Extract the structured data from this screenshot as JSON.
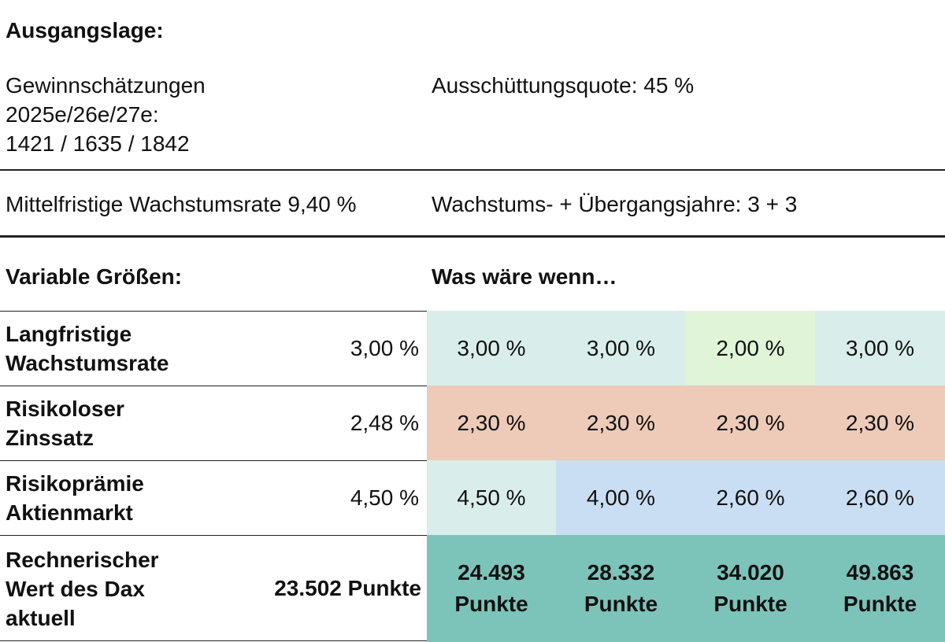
{
  "ausgangslage": {
    "title": "Ausgangslage:",
    "gewinn_label_1": "Gewinnschätzungen",
    "gewinn_label_2": "2025e/26e/27e:",
    "gewinn_values": "1421 / 1635 / 1842",
    "ausschuettung": "Ausschüttungsquote: 45 %",
    "wachstumsrate": "Mittelfristige Wachstumsrate 9,40 %",
    "jahre": "Wachstums- + Übergangsjahre: 3 + 3"
  },
  "variable": {
    "title": "Variable Größen:",
    "scenario_title": "Was wäre wenn…",
    "rows": [
      {
        "label_1": "Langfristige",
        "label_2": "Wachstumsrate",
        "base": "3,00 %",
        "scenarios": [
          "3,00 %",
          "3,00 %",
          "2,00 %",
          "3,00 %"
        ],
        "colors": [
          "#d9eeea",
          "#d9eeea",
          "#e0f4d8",
          "#d9eeea"
        ]
      },
      {
        "label_1": "Risikoloser",
        "label_2": "Zinssatz",
        "base": "2,48 %",
        "scenarios": [
          "2,30 %",
          "2,30 %",
          "2,30 %",
          "2,30 %"
        ],
        "colors": [
          "#edcbb8",
          "#edcbb8",
          "#edcbb8",
          "#edcbb8"
        ]
      },
      {
        "label_1": "Risikoprämie",
        "label_2": "Aktienmarkt",
        "base": "4,50 %",
        "scenarios": [
          "4,50 %",
          "4,00 %",
          "2,60 %",
          "2,60 %"
        ],
        "colors": [
          "#d9eeea",
          "#c9def2",
          "#c9def2",
          "#c9def2"
        ]
      }
    ],
    "result": {
      "label_1": "Rechnerischer",
      "label_2": "Wert des Dax",
      "label_3": "aktuell",
      "base": "23.502 Punkte",
      "scenarios": [
        {
          "num": "24.493",
          "unit": "Punkte"
        },
        {
          "num": "28.332",
          "unit": "Punkte"
        },
        {
          "num": "34.020",
          "unit": "Punkte"
        },
        {
          "num": "49.863",
          "unit": "Punkte"
        }
      ],
      "color": "#7cc4ba"
    }
  }
}
